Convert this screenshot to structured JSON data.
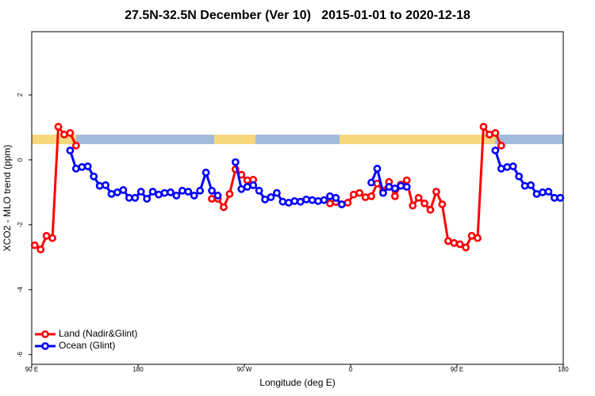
{
  "chart_data": {
    "type": "line",
    "title": "27.5N-32.5N December (Ver 10)   2015-01-01 to 2020-12-18",
    "xlabel": "Longitude (deg E)",
    "ylabel": "XCO2 - MLO trend (ppm)",
    "xlim": [
      90,
      540
    ],
    "ylim": [
      -6.3,
      3.95
    ],
    "xticks": [
      {
        "value": 90,
        "label": "90 E"
      },
      180,
      {
        "value": 270,
        "label": "90 W"
      },
      {
        "value": 360,
        "label": "0"
      },
      {
        "value": 450,
        "label": "90 E"
      },
      {
        "value": 540,
        "label": "180"
      }
    ],
    "yticks": [
      2,
      0,
      -2,
      -4,
      -6
    ],
    "legend": "bottom-left",
    "x": [
      92.5,
      97.5,
      102.5,
      107.5,
      112.5,
      117.5,
      122.5,
      127.5,
      132.5,
      137.5,
      142.5,
      147.5,
      152.5,
      157.5,
      162.5,
      167.5,
      172.5,
      177.5,
      182.5,
      187.5,
      192.5,
      197.5,
      202.5,
      207.5,
      212.5,
      217.5,
      222.5,
      227.5,
      232.5,
      237.5,
      242.5,
      247.5,
      252.5,
      257.5,
      262.5,
      267.5,
      272.5,
      277.5,
      282.5,
      287.5,
      292.5,
      297.5,
      302.5,
      307.5,
      312.5,
      317.5,
      322.5,
      327.5,
      332.5,
      337.5,
      342.5,
      347.5,
      352.5,
      357.5,
      362.5,
      367.5,
      372.5,
      377.5,
      382.5,
      387.5,
      392.5,
      397.5,
      402.5,
      407.5,
      412.5,
      417.5,
      422.5,
      427.5,
      432.5,
      437.5,
      442.5,
      447.5,
      452.5,
      457.5,
      462.5,
      467.5,
      472.5,
      477.5,
      482.5,
      487.5,
      492.5,
      497.5,
      502.5,
      507.5,
      512.5,
      517.5,
      522.5,
      527.5,
      532.5,
      537.5
    ],
    "series": [
      {
        "name": "Land (Nadir&Glint)",
        "color": "#ff0000",
        "values": [
          -2.63,
          -2.76,
          -2.34,
          -2.41,
          1.02,
          0.78,
          0.83,
          0.44,
          null,
          null,
          null,
          null,
          null,
          null,
          null,
          null,
          null,
          null,
          null,
          null,
          null,
          null,
          null,
          null,
          null,
          null,
          null,
          null,
          null,
          null,
          -1.2,
          -1.2,
          -1.46,
          -1.05,
          -0.29,
          -0.46,
          -0.63,
          -0.61,
          null,
          null,
          null,
          null,
          null,
          null,
          null,
          null,
          null,
          null,
          null,
          null,
          -1.34,
          -1.3,
          -1.37,
          -1.32,
          -1.07,
          -1.02,
          -1.15,
          -1.12,
          -0.73,
          -0.95,
          -0.68,
          -1.12,
          -0.76,
          -0.63,
          -1.41,
          -1.17,
          -1.34,
          -1.54,
          -0.98,
          -1.37,
          -2.5,
          -2.56,
          -2.6,
          -2.7,
          -2.34,
          -2.41,
          1.02,
          0.78,
          0.83,
          0.44,
          null,
          null,
          null,
          null,
          null,
          null,
          null,
          null,
          null,
          null
        ]
      },
      {
        "name": "Ocean (Glint)",
        "color": "#0000ff",
        "values": [
          null,
          null,
          null,
          null,
          null,
          null,
          0.29,
          -0.27,
          -0.22,
          -0.2,
          -0.51,
          -0.8,
          -0.78,
          -1.05,
          -1.0,
          -0.93,
          -1.17,
          -1.17,
          -0.98,
          -1.2,
          -0.98,
          -1.07,
          -1.02,
          -1.0,
          -1.1,
          -0.95,
          -0.98,
          -1.1,
          -0.95,
          -0.39,
          -0.95,
          -1.1,
          null,
          null,
          -0.07,
          -0.9,
          -0.83,
          -0.78,
          -0.95,
          -1.22,
          -1.15,
          -1.02,
          -1.29,
          -1.32,
          -1.27,
          -1.29,
          -1.22,
          -1.24,
          -1.27,
          -1.24,
          -1.12,
          -1.17,
          -1.37,
          null,
          null,
          null,
          null,
          -0.7,
          -0.27,
          -1.02,
          -0.83,
          -0.88,
          -0.8,
          -0.83,
          null,
          null,
          null,
          null,
          null,
          null,
          null,
          null,
          null,
          null,
          null,
          null,
          null,
          null,
          0.29,
          -0.27,
          -0.22,
          -0.2,
          -0.51,
          -0.8,
          -0.78,
          -1.05,
          -1.0,
          -0.98,
          -1.17,
          -1.17
        ]
      }
    ]
  }
}
